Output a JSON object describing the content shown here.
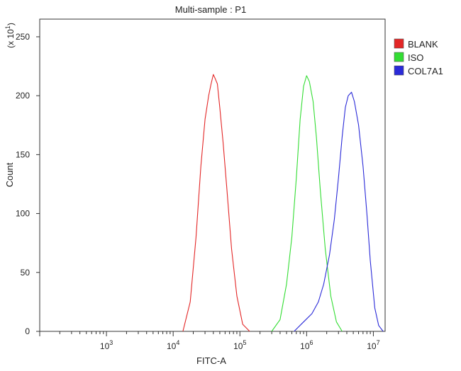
{
  "chart_data": {
    "type": "line",
    "title": "Multi-sample : P1",
    "xlabel": "FITC-A",
    "ylabel": "Count",
    "y_multiplier_base": "(x 10",
    "y_multiplier_exp": "1",
    "y_multiplier_close": ")",
    "x_scale": "log",
    "xlim": [
      100,
      15000000
    ],
    "ylim": [
      0,
      265
    ],
    "grid": false,
    "legend_position": "right",
    "x_ticks": [
      {
        "base": "10",
        "exp": "3",
        "value": 1000
      },
      {
        "base": "10",
        "exp": "4",
        "value": 10000
      },
      {
        "base": "10",
        "exp": "5",
        "value": 100000
      },
      {
        "base": "10",
        "exp": "6",
        "value": 1000000
      },
      {
        "base": "10",
        "exp": "7",
        "value": 10000000
      }
    ],
    "y_ticks": [
      "0",
      "50",
      "100",
      "150",
      "200",
      "250"
    ],
    "series": [
      {
        "name": "BLANK",
        "color": "#e32626",
        "x": [
          14000,
          18000,
          22000,
          26000,
          30000,
          34000,
          37000,
          40000,
          43000,
          46000,
          50000,
          56000,
          64000,
          75000,
          90000,
          110000,
          140000
        ],
        "y": [
          0,
          25,
          80,
          140,
          180,
          200,
          210,
          218,
          214,
          210,
          190,
          160,
          120,
          70,
          30,
          6,
          0
        ]
      },
      {
        "name": "ISO",
        "color": "#33dd33",
        "x": [
          300000,
          400000,
          500000,
          600000,
          700000,
          800000,
          900000,
          1000000,
          1100000,
          1250000,
          1400000,
          1600000,
          1900000,
          2300000,
          2800000,
          3400000
        ],
        "y": [
          0,
          10,
          40,
          80,
          130,
          180,
          208,
          217,
          212,
          195,
          165,
          120,
          70,
          30,
          8,
          0
        ]
      },
      {
        "name": "COL7A1",
        "color": "#2a2ad8",
        "x": [
          650000,
          900000,
          1200000,
          1500000,
          1800000,
          2200000,
          2600000,
          3000000,
          3400000,
          3800000,
          4200000,
          4700000,
          5200000,
          6000000,
          7000000,
          8000000,
          9000000,
          10500000,
          12000000,
          14000000
        ],
        "y": [
          0,
          8,
          15,
          25,
          40,
          65,
          95,
          130,
          165,
          190,
          200,
          203,
          195,
          175,
          140,
          100,
          60,
          20,
          5,
          0
        ]
      }
    ]
  }
}
